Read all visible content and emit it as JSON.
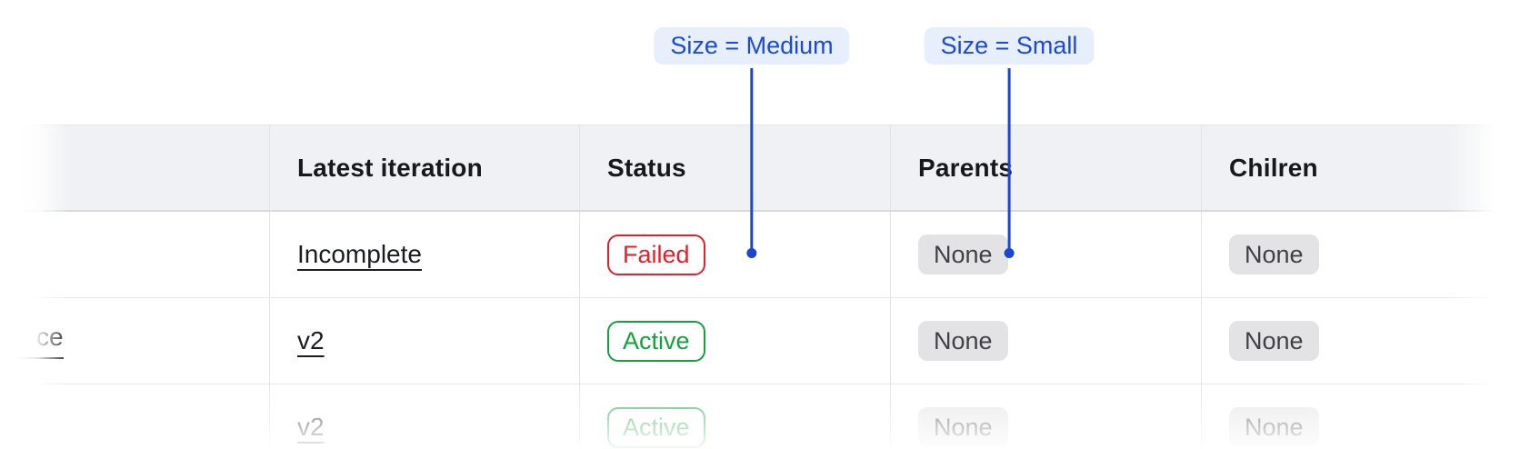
{
  "annotations": {
    "medium": {
      "label": "Size = Medium"
    },
    "small": {
      "label": "Size = Small"
    }
  },
  "table": {
    "columns": [
      "",
      "Latest iteration",
      "Status",
      "Parents",
      "Chilren"
    ],
    "rows": [
      {
        "name": "",
        "latest_iteration": "Incomplete",
        "status": "Failed",
        "parents": "None",
        "children": "None"
      },
      {
        "name": "ce",
        "latest_iteration": "v2",
        "status": "Active",
        "parents": "None",
        "children": "None"
      },
      {
        "name": "",
        "latest_iteration": "v2",
        "status": "Active",
        "parents": "None",
        "children": "None"
      }
    ]
  },
  "colors": {
    "annotation_blue": "#1c45d4",
    "annotation_pill_bg": "#e8effc",
    "annotation_pill_text": "#1b4ad6",
    "failed_red": "#e0202a",
    "active_green": "#15a13d",
    "chip_bg": "#e3e3e5",
    "chip_text": "#404046",
    "header_bg": "#f0f1f4"
  }
}
